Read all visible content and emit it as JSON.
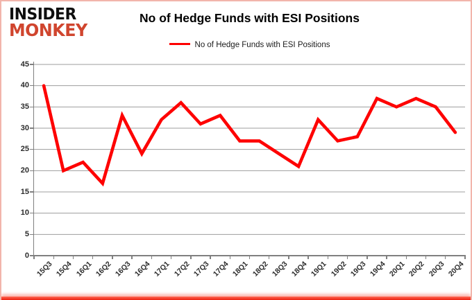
{
  "brand": {
    "line1": "INSIDER",
    "line2": "MONKEY",
    "color": "#d0452e"
  },
  "title": "No of Hedge Funds with ESI Positions",
  "legend": {
    "label": "No of Hedge Funds with ESI Positions",
    "color": "#fe0000"
  },
  "colors": {
    "line": "#fe0000",
    "gridline": "#9d9d9d",
    "axis": "#7f7f7f"
  },
  "chart_data": {
    "type": "line",
    "title": "No of Hedge Funds with ESI Positions",
    "categories": [
      "15Q3",
      "15Q4",
      "16Q1",
      "16Q2",
      "16Q3",
      "16Q4",
      "17Q1",
      "17Q2",
      "17Q3",
      "17Q4",
      "18Q1",
      "18Q2",
      "18Q3",
      "18Q4",
      "19Q1",
      "19Q2",
      "19Q3",
      "19Q4",
      "20Q1",
      "20Q2",
      "20Q3",
      "20Q4"
    ],
    "series": [
      {
        "name": "No of Hedge Funds with ESI Positions",
        "color": "#fe0000",
        "values": [
          40,
          20,
          22,
          17,
          33,
          24,
          32,
          36,
          31,
          33,
          27,
          27,
          24,
          21,
          32,
          27,
          28,
          37,
          35,
          37,
          35,
          29
        ]
      }
    ],
    "xlabel": "",
    "ylabel": "",
    "ylim": [
      0,
      45
    ],
    "yticks": [
      0,
      5,
      10,
      15,
      20,
      25,
      30,
      35,
      40,
      45
    ],
    "grid": true,
    "legend_position": "top"
  }
}
